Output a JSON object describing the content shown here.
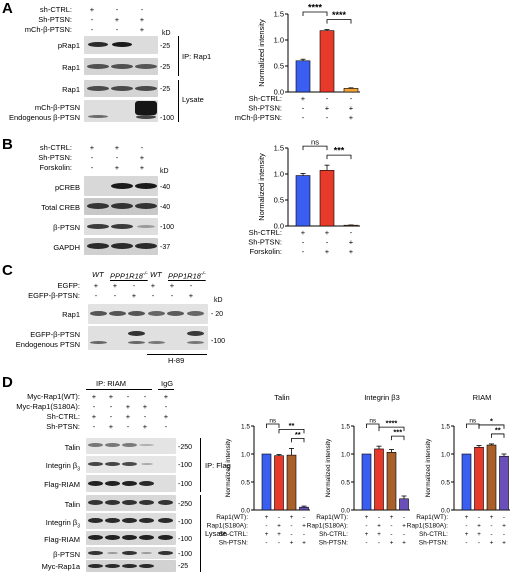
{
  "panels": {
    "A": {
      "letter": "A",
      "conditions": [
        "sh-CTRL:",
        "Sh-PTSN:",
        "mCh-β-PTSN:"
      ],
      "signs": [
        [
          "+",
          "-",
          "-"
        ],
        [
          "-",
          "+",
          "+"
        ],
        [
          "-",
          "-",
          "+"
        ]
      ],
      "kd_header": "kD",
      "blots": [
        {
          "label": "pRap1",
          "kd": "-25"
        },
        {
          "label": "Rap1",
          "kd": "-25"
        },
        {
          "label": "Rap1",
          "kd": "-25"
        },
        {
          "label": "mCh-β-PTSN",
          "kd": ""
        },
        {
          "label": "Endogenous β-PTSN",
          "kd": "-100"
        }
      ],
      "groups": [
        "IP: Rap1",
        "Lysate"
      ]
    },
    "B": {
      "letter": "B",
      "conditions": [
        "sh-CTRL:",
        "Sh-PTSN:",
        "Forskolin:"
      ],
      "signs": [
        [
          "+",
          "+",
          "-"
        ],
        [
          "-",
          "-",
          "+"
        ],
        [
          "-",
          "+",
          "+"
        ]
      ],
      "kd_header": "kD",
      "blots": [
        {
          "label": "pCREB",
          "kd": "-40"
        },
        {
          "label": "Total CREB",
          "kd": "-40"
        },
        {
          "label": "β-PTSN",
          "kd": "-100"
        },
        {
          "label": "GAPDH",
          "kd": "-37"
        }
      ]
    },
    "C": {
      "letter": "C",
      "genotypes": [
        "WT",
        "PPP1R18",
        "WT",
        "PPP1R18"
      ],
      "genotype_sup": "-/-",
      "conditions": [
        "EGFP:",
        "EGFP-β-PTSN:"
      ],
      "signs": [
        [
          "+",
          "+",
          "-",
          "+",
          "+",
          "-"
        ],
        [
          "-",
          "-",
          "+",
          "-",
          "-",
          "+"
        ]
      ],
      "kd_header": "kD",
      "blots": [
        {
          "label": "Rap1",
          "kd": "- 20"
        },
        {
          "label": "EGFP-β-PTSN",
          "kd": ""
        },
        {
          "label": "Endogenous PTSN",
          "kd": "-100"
        }
      ],
      "treatment": "H-89"
    },
    "D": {
      "letter": "D",
      "ip_label": "IP: RIAM",
      "igg_label": "IgG",
      "conditions": [
        "Myc-Rap1(WT):",
        "Myc-Rap1(S180A):",
        "Sh-CTRL:",
        "Sh-PTSN:"
      ],
      "signs": [
        [
          "+",
          "+",
          "-",
          "-",
          "+"
        ],
        [
          "-",
          "-",
          "+",
          "+",
          "-"
        ],
        [
          "+",
          "-",
          "+",
          "-",
          "+"
        ],
        [
          "-",
          "+",
          "-",
          "+",
          "-"
        ]
      ],
      "blots": [
        {
          "label": "Talin",
          "kd": "-250"
        },
        {
          "label": "Integrin β",
          "sub": "3",
          "kd": "-100"
        },
        {
          "label": "Flag-RIAM",
          "kd": "-100"
        },
        {
          "label": "Talin",
          "kd": "-250"
        },
        {
          "label": "Integrin β",
          "sub": "3",
          "kd": "-100"
        },
        {
          "label": "Flag-RIAM",
          "kd": "-100"
        },
        {
          "label": "β-PTSN",
          "kd": "-100"
        },
        {
          "label": "Myc-Rap1a",
          "kd": "-25"
        }
      ],
      "groups": [
        "IP: Flag",
        "Lysate"
      ]
    }
  },
  "colors": {
    "blue": "#3a5ff0",
    "red": "#e83a2a",
    "orange": "#f2a33a",
    "brown": "#a8602a",
    "purple": "#6a4fb8"
  },
  "chart_data": [
    {
      "id": "A",
      "type": "bar",
      "title": "",
      "ylabel": "Normalized intensity",
      "ylim": [
        0,
        1.5
      ],
      "yticks": [
        "0.0",
        "0.5",
        "1.0",
        "1.5"
      ],
      "values": [
        0.6,
        1.18,
        0.07
      ],
      "errors": [
        0.03,
        0.02,
        0.01
      ],
      "colors": [
        "#3a5ff0",
        "#e83a2a",
        "#f2a33a"
      ],
      "conditions": [
        "Sh-CTRL:",
        "Sh-PTSN:",
        "mCh-β-PTSN:"
      ],
      "signs": [
        [
          "+",
          "-",
          "-"
        ],
        [
          "-",
          "+",
          "+"
        ],
        [
          "-",
          "-",
          "+"
        ]
      ],
      "significance": [
        {
          "from": 0,
          "to": 1,
          "text": "****"
        },
        {
          "from": 1,
          "to": 2,
          "text": "****"
        }
      ]
    },
    {
      "id": "B",
      "type": "bar",
      "title": "",
      "ylabel": "Normalized intensity",
      "ylim": [
        0,
        1.5
      ],
      "yticks": [
        "0.0",
        "0.5",
        "1.0",
        "1.5"
      ],
      "values": [
        0.97,
        1.07,
        0.01
      ],
      "errors": [
        0.04,
        0.1,
        0.01
      ],
      "colors": [
        "#3a5ff0",
        "#e83a2a",
        "#f2a33a"
      ],
      "conditions": [
        "Sh-CTRL:",
        "Sh-PTSN:",
        "Forskolin:"
      ],
      "signs": [
        [
          "+",
          "+",
          "-"
        ],
        [
          "-",
          "-",
          "+"
        ],
        [
          "-",
          "+",
          "+"
        ]
      ],
      "significance": [
        {
          "from": 0,
          "to": 1,
          "text": "ns"
        },
        {
          "from": 1,
          "to": 2,
          "text": "***"
        }
      ]
    },
    {
      "id": "Talin",
      "type": "bar",
      "title": "Talin",
      "ylabel": "Normalized intensity",
      "ylim": [
        0,
        1.5
      ],
      "yticks": [
        "0.0",
        "0.5",
        "1.0",
        "1.5"
      ],
      "values": [
        1.0,
        0.97,
        0.98,
        0.05
      ],
      "errors": [
        0.0,
        0.02,
        0.12,
        0.02
      ],
      "colors": [
        "#3a5ff0",
        "#e83a2a",
        "#a8602a",
        "#6a4fb8"
      ],
      "conditions": [
        "Rap1(WT):",
        "Rap1(S180A):",
        "Sh-CTRL:",
        "Sh-PTSN:"
      ],
      "signs": [
        [
          "+",
          "-",
          "+",
          "-"
        ],
        [
          "-",
          "+",
          "-",
          "+"
        ],
        [
          "+",
          "+",
          "-",
          "-"
        ],
        [
          "-",
          "-",
          "+",
          "+"
        ]
      ],
      "significance": [
        {
          "from": 0,
          "to": 1,
          "text": "ns"
        },
        {
          "from": 1,
          "to": 3,
          "text": "**"
        },
        {
          "from": 2,
          "to": 3,
          "text": "**"
        }
      ]
    },
    {
      "id": "Integrin β3",
      "type": "bar",
      "title": "Integrin β3",
      "ylabel": "Normalized intensity",
      "ylim": [
        0,
        1.5
      ],
      "yticks": [
        "0.0",
        "0.5",
        "1.0",
        "1.5"
      ],
      "values": [
        1.0,
        1.09,
        1.03,
        0.2
      ],
      "errors": [
        0.0,
        0.05,
        0.05,
        0.05
      ],
      "colors": [
        "#3a5ff0",
        "#e83a2a",
        "#a8602a",
        "#6a4fb8"
      ],
      "conditions": [
        "Rap1(WT):",
        "Rap1(S180A):",
        "Sh-CTRL:",
        "Sh-PTSN:"
      ],
      "signs": [
        [
          "+",
          "-",
          "+",
          "-"
        ],
        [
          "-",
          "+",
          "-",
          "+"
        ],
        [
          "+",
          "+",
          "-",
          "-"
        ],
        [
          "-",
          "-",
          "+",
          "+"
        ]
      ],
      "significance": [
        {
          "from": 0,
          "to": 1,
          "text": "ns"
        },
        {
          "from": 1,
          "to": 3,
          "text": "****"
        },
        {
          "from": 2,
          "to": 3,
          "text": "***"
        }
      ]
    },
    {
      "id": "RIAM",
      "type": "bar",
      "title": "RIAM",
      "ylabel": "Normalized intensity",
      "ylim": [
        0,
        1.5
      ],
      "yticks": [
        "0.0",
        "0.5",
        "1.0",
        "1.5"
      ],
      "values": [
        1.0,
        1.12,
        1.16,
        0.96
      ],
      "errors": [
        0.0,
        0.03,
        0.02,
        0.04
      ],
      "colors": [
        "#3a5ff0",
        "#e83a2a",
        "#a8602a",
        "#6a4fb8"
      ],
      "conditions": [
        "Rap1(WT):",
        "Rap1(S180A):",
        "Sh-CTRL:",
        "Sh-PTSN:"
      ],
      "signs": [
        [
          "+",
          "-",
          "+",
          "-"
        ],
        [
          "-",
          "+",
          "-",
          "+"
        ],
        [
          "+",
          "+",
          "-",
          "-"
        ],
        [
          "-",
          "-",
          "+",
          "+"
        ]
      ],
      "significance": [
        {
          "from": 0,
          "to": 1,
          "text": "ns"
        },
        {
          "from": 1,
          "to": 3,
          "text": "*"
        },
        {
          "from": 2,
          "to": 3,
          "text": "**"
        }
      ]
    }
  ]
}
